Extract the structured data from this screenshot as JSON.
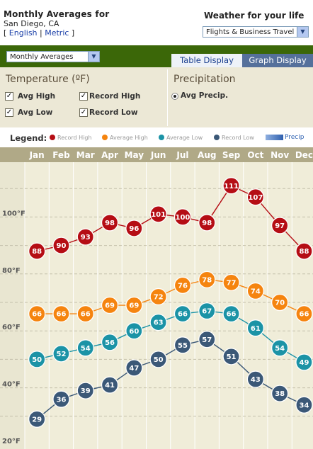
{
  "header": {
    "title": "Monthly Averages for",
    "location": "San Diego, CA",
    "units_open": "[ ",
    "units_english": "English",
    "units_sep": " | ",
    "units_metric": "Metric",
    "units_close": " ]",
    "weather_title": "Weather for your life",
    "weather_select": "Flights & Business Travel"
  },
  "toolbar": {
    "view_select": "Monthly Averages",
    "tab_table": "Table Display",
    "tab_graph": "Graph Display"
  },
  "filters": {
    "temperature_heading": "Temperature  (ºF)",
    "precip_heading": "Precipitation",
    "avg_high": "Avg High",
    "record_high": "Record High",
    "avg_low": "Avg Low",
    "record_low": "Record Low",
    "avg_precip": "Avg Precip."
  },
  "legend": {
    "label": "Legend:",
    "record_high": "Record High",
    "average_high": "Average High",
    "average_low": "Average Low",
    "record_low": "Record Low",
    "precip": "Precip"
  },
  "colors": {
    "record_high": "#b50d14",
    "average_high": "#f5840f",
    "average_low": "#1b93a6",
    "record_low": "#3b5877",
    "precip": "#3265b3",
    "header_green": "#3b6708",
    "month_header": "#b0a987",
    "plot_bg": "#f0edd9"
  },
  "chart_data": {
    "type": "line",
    "categories": [
      "Jan",
      "Feb",
      "Mar",
      "Apr",
      "May",
      "Jun",
      "Jul",
      "Aug",
      "Sep",
      "Oct",
      "Nov",
      "Dec"
    ],
    "series": [
      {
        "name": "Record High",
        "key": "record_high",
        "values": [
          88,
          90,
          93,
          98,
          96,
          101,
          100,
          98,
          111,
          107,
          97,
          88
        ]
      },
      {
        "name": "Average High",
        "key": "average_high",
        "values": [
          66,
          66,
          66,
          69,
          69,
          72,
          76,
          78,
          77,
          74,
          70,
          66
        ]
      },
      {
        "name": "Average Low",
        "key": "average_low",
        "values": [
          50,
          52,
          54,
          56,
          60,
          63,
          66,
          67,
          66,
          61,
          54,
          49
        ]
      },
      {
        "name": "Record Low",
        "key": "record_low",
        "values": [
          29,
          36,
          39,
          41,
          47,
          50,
          55,
          57,
          51,
          43,
          38,
          34
        ]
      }
    ],
    "ylabel_ticks": [
      "100°F",
      "80°F",
      "60°F",
      "40°F",
      "20°F"
    ],
    "ytick_values": [
      100,
      80,
      60,
      40,
      20
    ],
    "ylim": [
      20,
      115
    ],
    "grid": true,
    "legend_position": "top"
  }
}
